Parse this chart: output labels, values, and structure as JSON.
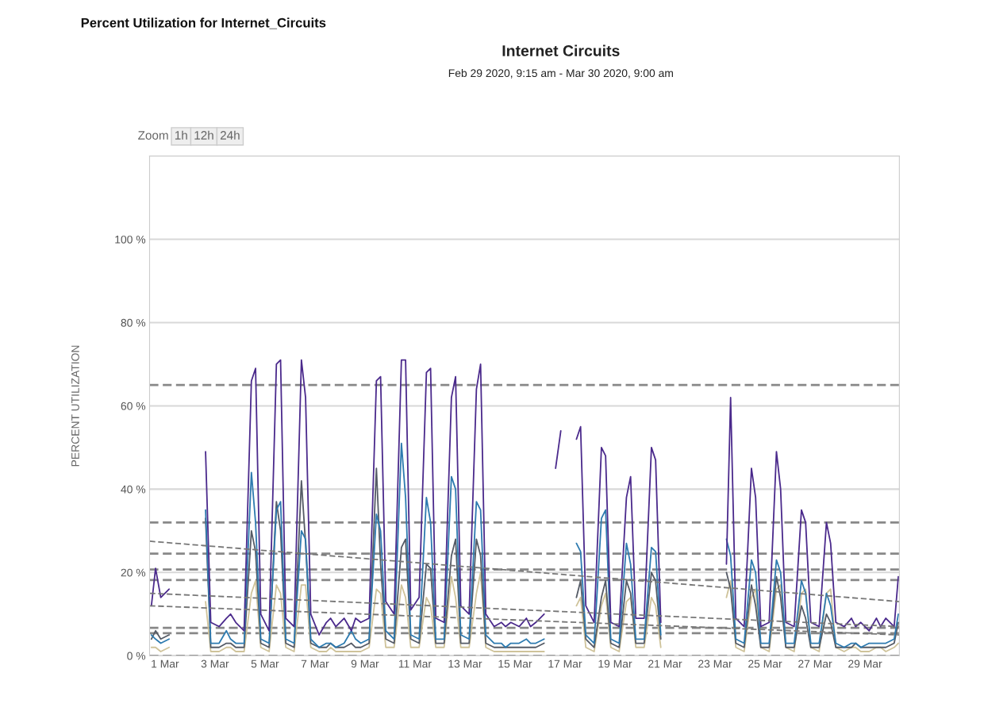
{
  "chart_data": {
    "type": "line",
    "title": "Internet Circuits",
    "subtitle": "Feb 29 2020, 9:15 am - Mar 30 2020, 9:00 am",
    "ylabel": "PERCENT UTILIZATION",
    "annotations": [
      "Percent Utilization for Internet_Circuits",
      "Zoom",
      "1h",
      "12h",
      "24h"
    ],
    "x": [
      "2020-02-29T11:00",
      "2020-02-29T15:00",
      "2020-02-29T20:00",
      "2020-03-01T04:00",
      "2020-03-01T11:00",
      "2020-03-01T15:00",
      "2020-03-01T20:00",
      "2020-03-02T04:00",
      "2020-03-02T11:00",
      "2020-03-02T15:00",
      "2020-03-02T20:00",
      "2020-03-03T04:00",
      "2020-03-03T11:00",
      "2020-03-03T15:00",
      "2020-03-03T20:00",
      "2020-03-04T04:00",
      "2020-03-04T11:00",
      "2020-03-04T15:00",
      "2020-03-04T20:00",
      "2020-03-05T04:00",
      "2020-03-05T11:00",
      "2020-03-05T15:00",
      "2020-03-05T20:00",
      "2020-03-06T04:00",
      "2020-03-06T11:00",
      "2020-03-06T15:00",
      "2020-03-06T20:00",
      "2020-03-07T04:00",
      "2020-03-07T11:00",
      "2020-03-07T15:00",
      "2020-03-07T20:00",
      "2020-03-08T04:00",
      "2020-03-08T11:00",
      "2020-03-08T15:00",
      "2020-03-08T20:00",
      "2020-03-09T04:00",
      "2020-03-09T11:00",
      "2020-03-09T15:00",
      "2020-03-09T20:00",
      "2020-03-10T04:00",
      "2020-03-10T11:00",
      "2020-03-10T15:00",
      "2020-03-10T20:00",
      "2020-03-11T04:00",
      "2020-03-11T11:00",
      "2020-03-11T15:00",
      "2020-03-11T20:00",
      "2020-03-12T04:00",
      "2020-03-12T11:00",
      "2020-03-12T15:00",
      "2020-03-12T20:00",
      "2020-03-13T04:00",
      "2020-03-13T11:00",
      "2020-03-13T15:00",
      "2020-03-13T20:00",
      "2020-03-14T04:00",
      "2020-03-14T11:00",
      "2020-03-14T15:00",
      "2020-03-14T20:00",
      "2020-03-15T04:00",
      "2020-03-15T11:00",
      "2020-03-15T15:00",
      "2020-03-15T20:00",
      "2020-03-16T04:00",
      "2020-03-16T11:00",
      "2020-03-16T15:00",
      "2020-03-16T20:00",
      "2020-03-17T04:00",
      "2020-03-17T11:00",
      "2020-03-17T15:00",
      "2020-03-17T20:00",
      "2020-03-18T04:00",
      "2020-03-18T11:00",
      "2020-03-18T15:00",
      "2020-03-18T20:00",
      "2020-03-19T04:00",
      "2020-03-19T11:00",
      "2020-03-19T15:00",
      "2020-03-19T20:00",
      "2020-03-20T04:00",
      "2020-03-20T11:00",
      "2020-03-20T15:00",
      "2020-03-20T20:00",
      "2020-03-21T04:00",
      "2020-03-21T11:00",
      "2020-03-21T15:00",
      "2020-03-21T20:00",
      "2020-03-22T04:00",
      "2020-03-22T11:00",
      "2020-03-22T15:00",
      "2020-03-22T20:00",
      "2020-03-23T04:00",
      "2020-03-23T11:00",
      "2020-03-23T15:00",
      "2020-03-23T20:00",
      "2020-03-24T04:00",
      "2020-03-24T11:00",
      "2020-03-24T15:00",
      "2020-03-24T20:00",
      "2020-03-25T04:00",
      "2020-03-25T11:00",
      "2020-03-25T15:00",
      "2020-03-25T20:00",
      "2020-03-26T04:00",
      "2020-03-26T11:00",
      "2020-03-26T15:00",
      "2020-03-26T20:00",
      "2020-03-27T04:00",
      "2020-03-27T11:00",
      "2020-03-27T15:00",
      "2020-03-27T20:00",
      "2020-03-28T04:00",
      "2020-03-28T11:00",
      "2020-03-28T15:00",
      "2020-03-28T20:00",
      "2020-03-29T04:00",
      "2020-03-29T11:00",
      "2020-03-29T15:00",
      "2020-03-29T20:00",
      "2020-03-30T04:00",
      "2020-03-30T08:00"
    ],
    "series": [
      {
        "color": "#cfc39a",
        "values": [
          2,
          2,
          1,
          2,
          null,
          null,
          null,
          null,
          null,
          13,
          1,
          1,
          2,
          2,
          1,
          1,
          15,
          18,
          2,
          1,
          17,
          15,
          2,
          1,
          17,
          17,
          2,
          1,
          1,
          2,
          1,
          1,
          1,
          1,
          1,
          2,
          16,
          15,
          2,
          2,
          17,
          14,
          2,
          2,
          14,
          12,
          2,
          2,
          19,
          14,
          2,
          2,
          15,
          20,
          2,
          1,
          1,
          1,
          1,
          1,
          1,
          1,
          1,
          1,
          null,
          null,
          null,
          null,
          12,
          14,
          2,
          1,
          12,
          15,
          2,
          1,
          13,
          14,
          2,
          2,
          14,
          12,
          2,
          null,
          null,
          null,
          null,
          null,
          null,
          null,
          null,
          null,
          14,
          18,
          2,
          1,
          14,
          16,
          2,
          1,
          16,
          17,
          2,
          1,
          15,
          16,
          2,
          1,
          15,
          16,
          2,
          1,
          2,
          2,
          1,
          1,
          2,
          2,
          1,
          2,
          3
        ]
      },
      {
        "color": "#555b66",
        "values": [
          4,
          6,
          4,
          5,
          null,
          null,
          null,
          null,
          null,
          33,
          2,
          2,
          3,
          3,
          2,
          2,
          30,
          25,
          3,
          2,
          37,
          30,
          3,
          2,
          42,
          27,
          3,
          2,
          2,
          3,
          2,
          2,
          3,
          2,
          2,
          3,
          45,
          22,
          4,
          3,
          26,
          28,
          4,
          3,
          22,
          21,
          3,
          3,
          24,
          28,
          3,
          3,
          28,
          24,
          3,
          2,
          2,
          2,
          2,
          2,
          2,
          2,
          2,
          3,
          null,
          null,
          null,
          null,
          14,
          18,
          4,
          2,
          14,
          18,
          3,
          2,
          18,
          15,
          3,
          3,
          20,
          18,
          4,
          null,
          null,
          null,
          null,
          null,
          null,
          null,
          null,
          null,
          20,
          16,
          3,
          2,
          17,
          12,
          2,
          2,
          19,
          14,
          2,
          2,
          12,
          9,
          2,
          2,
          10,
          8,
          2,
          2,
          2,
          3,
          2,
          2,
          2,
          2,
          2,
          3,
          8
        ]
      },
      {
        "color": "#2e7bb0",
        "values": [
          5,
          4,
          3,
          4,
          null,
          null,
          null,
          null,
          null,
          35,
          3,
          3,
          6,
          4,
          3,
          3,
          44,
          32,
          4,
          3,
          35,
          37,
          4,
          3,
          30,
          28,
          4,
          2,
          3,
          3,
          2,
          3,
          6,
          4,
          3,
          4,
          34,
          30,
          6,
          4,
          51,
          38,
          5,
          4,
          38,
          32,
          4,
          4,
          43,
          40,
          5,
          4,
          37,
          35,
          5,
          3,
          3,
          2,
          3,
          3,
          4,
          3,
          3,
          4,
          null,
          null,
          null,
          null,
          27,
          25,
          5,
          3,
          33,
          35,
          4,
          3,
          27,
          22,
          4,
          4,
          26,
          25,
          5,
          null,
          null,
          null,
          null,
          null,
          null,
          null,
          null,
          null,
          28,
          24,
          4,
          3,
          23,
          20,
          3,
          3,
          23,
          20,
          3,
          3,
          18,
          15,
          3,
          3,
          15,
          12,
          3,
          2,
          3,
          3,
          2,
          3,
          3,
          3,
          3,
          4,
          10
        ]
      },
      {
        "color": "#4b2a8c",
        "values": [
          12,
          21,
          14,
          16,
          null,
          null,
          null,
          null,
          null,
          49,
          8,
          7,
          9,
          10,
          8,
          6,
          66,
          69,
          10,
          6,
          70,
          71,
          9,
          7,
          71,
          62,
          10,
          5,
          8,
          9,
          7,
          9,
          6,
          9,
          8,
          9,
          66,
          67,
          13,
          10,
          71,
          71,
          11,
          14,
          68,
          69,
          9,
          8,
          62,
          67,
          12,
          10,
          64,
          70,
          10,
          7,
          8,
          7,
          8,
          7,
          9,
          7,
          8,
          10,
          null,
          45,
          54,
          null,
          52,
          55,
          12,
          8,
          50,
          48,
          8,
          7,
          38,
          43,
          9,
          9,
          50,
          47,
          8,
          null,
          null,
          null,
          null,
          null,
          null,
          null,
          null,
          null,
          22,
          62,
          9,
          7,
          45,
          38,
          7,
          8,
          49,
          40,
          8,
          7,
          35,
          32,
          8,
          7,
          32,
          27,
          8,
          7,
          9,
          7,
          8,
          6,
          9,
          7,
          9,
          7,
          19
        ]
      },
      {
        "color": "#777777",
        "line_style": "dashed",
        "x": [
          "2020-02-29T09:15",
          "2020-03-30T09:00"
        ],
        "values": [
          27.5,
          13
        ]
      },
      {
        "color": "#777777",
        "line_style": "dashed",
        "x": [
          "2020-02-29T09:15",
          "2020-03-30T09:00"
        ],
        "values": [
          15,
          7
        ]
      },
      {
        "color": "#777777",
        "line_style": "dashed",
        "x": [
          "2020-02-29T09:15",
          "2020-03-30T09:00"
        ],
        "values": [
          12,
          5
        ]
      }
    ],
    "ref_lines": [
      {
        "axis": "y",
        "value": 65,
        "color": "#888888",
        "line_style": "dashed"
      },
      {
        "axis": "y",
        "value": 32,
        "color": "#888888",
        "line_style": "dashed"
      },
      {
        "axis": "y",
        "value": 24.5,
        "color": "#888888",
        "line_style": "dashed"
      },
      {
        "axis": "y",
        "value": 20.7,
        "color": "#888888",
        "line_style": "dashed"
      },
      {
        "axis": "y",
        "value": 18.2,
        "color": "#888888",
        "line_style": "dashed"
      },
      {
        "axis": "y",
        "value": 6.7,
        "color": "#888888",
        "line_style": "dashed"
      },
      {
        "axis": "y",
        "value": 5.4,
        "color": "#888888",
        "line_style": "dashed"
      },
      {
        "axis": "y",
        "value": 0,
        "color": "#888888",
        "line_style": "dashed"
      }
    ],
    "xlim": [
      "2020-02-29T09:15",
      "2020-03-30T09:00"
    ],
    "xticks": [
      {
        "value": "2020-03-01",
        "label": "1 Mar"
      },
      {
        "value": "2020-03-03",
        "label": "3 Mar"
      },
      {
        "value": "2020-03-05",
        "label": "5 Mar"
      },
      {
        "value": "2020-03-07",
        "label": "7 Mar"
      },
      {
        "value": "2020-03-09",
        "label": "9 Mar"
      },
      {
        "value": "2020-03-11",
        "label": "11 Mar"
      },
      {
        "value": "2020-03-13",
        "label": "13 Mar"
      },
      {
        "value": "2020-03-15",
        "label": "15 Mar"
      },
      {
        "value": "2020-03-17",
        "label": "17 Mar"
      },
      {
        "value": "2020-03-19",
        "label": "19 Mar"
      },
      {
        "value": "2020-03-21",
        "label": "21 Mar"
      },
      {
        "value": "2020-03-23",
        "label": "23 Mar"
      },
      {
        "value": "2020-03-25",
        "label": "25 Mar"
      },
      {
        "value": "2020-03-27",
        "label": "27 Mar"
      },
      {
        "value": "2020-03-29",
        "label": "29 Mar"
      }
    ],
    "ylim": [
      0,
      120
    ],
    "yticks": [
      {
        "value": 0,
        "label": "0 %"
      },
      {
        "value": 20,
        "label": "20 %"
      },
      {
        "value": 40,
        "label": "40 %"
      },
      {
        "value": 60,
        "label": "60 %"
      },
      {
        "value": 80,
        "label": "80 %"
      },
      {
        "value": 100,
        "label": "100 %"
      }
    ],
    "grid": "y",
    "marker": "none",
    "line_style": "solid",
    "legend": false
  }
}
